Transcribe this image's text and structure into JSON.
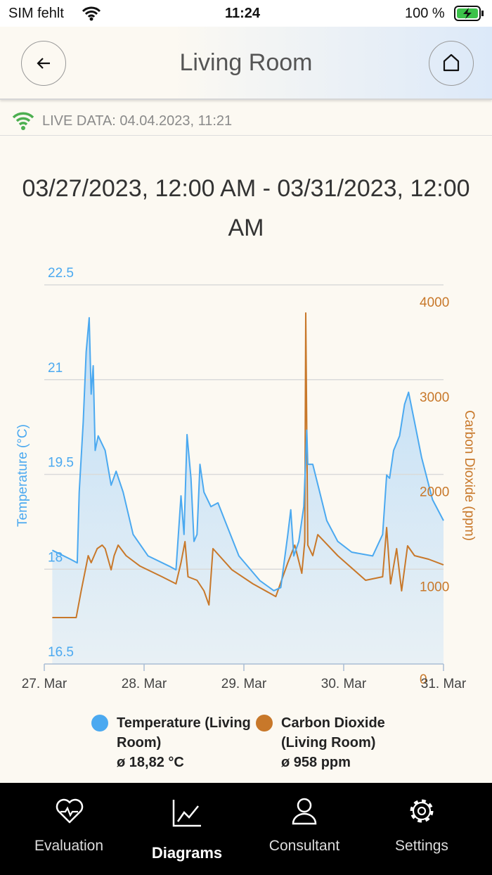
{
  "status_bar": {
    "carrier": "SIM fehlt",
    "time": "11:24",
    "battery": "100 %"
  },
  "header": {
    "title": "Living Room"
  },
  "live_data": "LIVE DATA: 04.04.2023, 11:21",
  "chart_data": {
    "type": "line",
    "title": "03/27/2023, 12:00 AM - 03/31/2023, 12:00 AM",
    "ylabel": "Temperature (°C)",
    "y2label": "Carbon Dioxide (ppm)",
    "xlim": [
      0,
      4
    ],
    "xticks": [
      {
        "value": 0,
        "label": "27. Mar"
      },
      {
        "value": 1,
        "label": "28. Mar"
      },
      {
        "value": 2,
        "label": "29. Mar"
      },
      {
        "value": 3,
        "label": "30. Mar"
      },
      {
        "value": 4,
        "label": "31. Mar"
      }
    ],
    "ylim": [
      16.5,
      22.5
    ],
    "yticks": [
      16.5,
      18,
      19.5,
      21,
      22.5
    ],
    "y2lim": [
      0,
      4000
    ],
    "y2ticks": [
      0,
      1000,
      2000,
      3000,
      4000
    ],
    "grid": true,
    "series": [
      {
        "name": "Temperature (Living Room)",
        "average": "ø 18,82 °C",
        "color": "#4ba9f0",
        "area": true,
        "x": [
          0.08,
          0.26,
          0.33,
          0.35,
          0.39,
          0.42,
          0.45,
          0.47,
          0.49,
          0.51,
          0.54,
          0.61,
          0.67,
          0.72,
          0.79,
          0.89,
          1.04,
          1.25,
          1.32,
          1.37,
          1.4,
          1.43,
          1.47,
          1.5,
          1.53,
          1.56,
          1.6,
          1.67,
          1.74,
          1.81,
          1.95,
          2.16,
          2.3,
          2.37,
          2.44,
          2.47,
          2.5,
          2.55,
          2.6,
          2.63,
          2.64,
          2.69,
          2.76,
          2.83,
          2.94,
          3.08,
          3.29,
          3.39,
          3.43,
          3.46,
          3.5,
          3.56,
          3.61,
          3.65,
          3.71,
          3.78,
          3.89,
          4.0
        ],
        "values": [
          18.3,
          18.16,
          18.1,
          19.22,
          20.33,
          21.44,
          21.98,
          20.77,
          21.22,
          19.88,
          20.11,
          19.88,
          19.33,
          19.55,
          19.22,
          18.55,
          18.21,
          18.05,
          17.99,
          19.16,
          18.55,
          20.13,
          19.44,
          18.44,
          18.55,
          19.66,
          19.22,
          18.99,
          19.05,
          18.77,
          18.21,
          17.82,
          17.66,
          17.71,
          18.55,
          18.94,
          18.21,
          18.44,
          18.99,
          20.2,
          19.66,
          19.66,
          19.22,
          18.77,
          18.44,
          18.27,
          18.21,
          18.55,
          19.49,
          19.44,
          19.88,
          20.11,
          20.61,
          20.8,
          20.33,
          19.77,
          19.1,
          18.77
        ]
      },
      {
        "name": "Carbon Dioxide (Living Room)",
        "average": "ø 958 ppm",
        "color": "#c8782a",
        "axis": "y2",
        "x": [
          0.08,
          0.32,
          0.37,
          0.44,
          0.47,
          0.53,
          0.58,
          0.61,
          0.67,
          0.7,
          0.74,
          0.82,
          0.96,
          1.18,
          1.32,
          1.37,
          1.41,
          1.44,
          1.53,
          1.6,
          1.65,
          1.69,
          1.88,
          2.09,
          2.32,
          2.44,
          2.51,
          2.58,
          2.61,
          2.62,
          2.64,
          2.69,
          2.74,
          2.94,
          3.22,
          3.39,
          3.43,
          3.47,
          3.53,
          3.58,
          3.64,
          3.71,
          3.85,
          4.0
        ],
        "values": [
          490,
          490,
          772,
          1143,
          1069,
          1217,
          1254,
          1217,
          994,
          1143,
          1254,
          1143,
          1032,
          920,
          846,
          1069,
          1291,
          920,
          883,
          772,
          623,
          1217,
          994,
          846,
          712,
          1069,
          1254,
          957,
          1291,
          3703,
          1254,
          1143,
          1365,
          1143,
          883,
          920,
          1440,
          846,
          1217,
          772,
          1247,
          1143,
          1106,
          1046
        ]
      }
    ]
  },
  "tab_bar": {
    "items": [
      {
        "label": "Evaluation"
      },
      {
        "label": "Diagrams",
        "selected": true
      },
      {
        "label": "Consultant"
      },
      {
        "label": "Settings"
      }
    ]
  }
}
